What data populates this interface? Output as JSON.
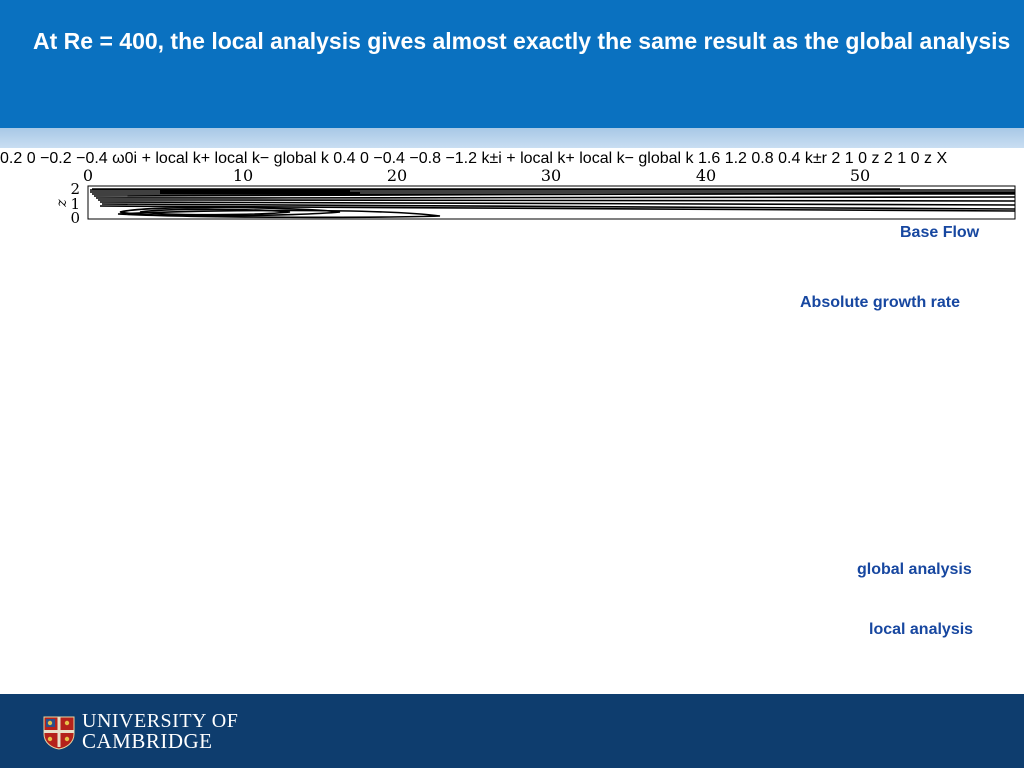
{
  "slide": {
    "title": "At Re = 400, the local analysis gives almost exactly the same result as the global analysis"
  },
  "panels": {
    "base_flow": {
      "label": "Base Flow",
      "x_ticks": [
        "0",
        "10",
        "20",
        "30",
        "40",
        "50"
      ],
      "y_ticks": [
        "2",
        "1",
        "0"
      ],
      "ylabel": "z"
    },
    "growth_rate": {
      "label": "Absolute growth rate",
      "y_ticks": [
        "0.2",
        "0",
        "−0.2",
        "−0.4"
      ],
      "ylabel": "ω0i"
    },
    "ki": {
      "y_ticks": [
        "0.4",
        "0",
        "−0.4",
        "−0.8",
        "−1.2"
      ],
      "ylabel": "k±i",
      "legend": {
        "plus": "local k+",
        "minus": "local k−",
        "global": "global k"
      }
    },
    "kr": {
      "y_ticks": [
        "1.6",
        "1.2",
        "0.8",
        "0.4"
      ],
      "ylabel": "k±r",
      "legend": {
        "plus": "local k+",
        "minus": "local k−",
        "global": "global k"
      }
    },
    "global_analysis": {
      "label": "global analysis",
      "y_ticks": [
        "2",
        "1",
        "0"
      ],
      "ylabel": "z"
    },
    "local_analysis": {
      "label": "local analysis",
      "y_ticks": [
        "2",
        "1",
        "0"
      ],
      "ylabel": "z"
    },
    "xlabel": "X"
  },
  "colors": {
    "header_blue": "#0a71c0",
    "footer_navy": "#0e3d6e",
    "label_blue": "#1747a0"
  },
  "footer": {
    "university_line1": "UNIVERSITY OF",
    "university_line2": "CAMBRIDGE",
    "logo_icon": "cambridge-crest-icon"
  }
}
